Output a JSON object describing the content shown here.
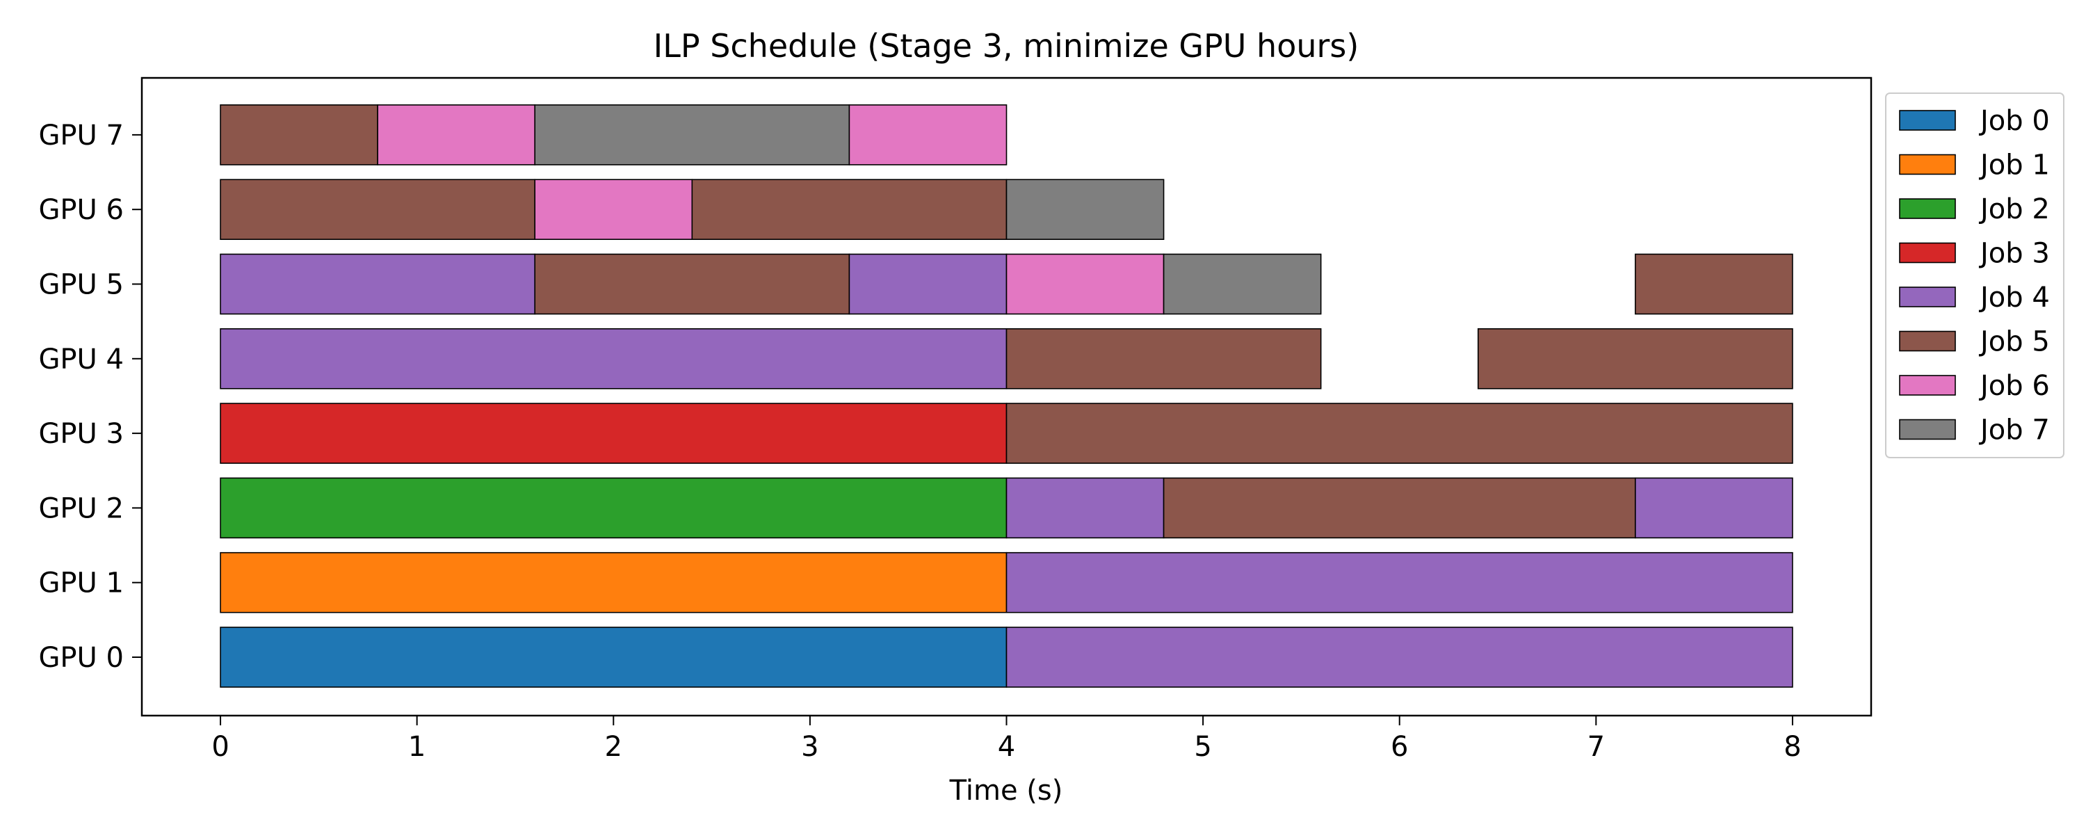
{
  "chart_data": {
    "type": "gantt",
    "title": "ILP Schedule (Stage 3, minimize GPU hours)",
    "xlabel": "Time (s)",
    "ylabel": "",
    "xlim": [
      -0.4,
      8.4
    ],
    "xticks": [
      "0",
      "1",
      "2",
      "3",
      "4",
      "5",
      "6",
      "7",
      "8"
    ],
    "rows": [
      "GPU 0",
      "GPU 1",
      "GPU 2",
      "GPU 3",
      "GPU 4",
      "GPU 5",
      "GPU 6",
      "GPU 7"
    ],
    "legend_position": "outside-top-right",
    "grid": false,
    "series": [
      {
        "name": "Job 0",
        "color": "#1f77b4"
      },
      {
        "name": "Job 1",
        "color": "#ff7f0e"
      },
      {
        "name": "Job 2",
        "color": "#2ca02c"
      },
      {
        "name": "Job 3",
        "color": "#d62728"
      },
      {
        "name": "Job 4",
        "color": "#9467bd"
      },
      {
        "name": "Job 5",
        "color": "#8c564b"
      },
      {
        "name": "Job 6",
        "color": "#e377c2"
      },
      {
        "name": "Job 7",
        "color": "#7f7f7f"
      }
    ],
    "tasks": [
      {
        "gpu": 0,
        "job": 0,
        "start": 0.0,
        "end": 4.0
      },
      {
        "gpu": 0,
        "job": 4,
        "start": 4.0,
        "end": 8.0
      },
      {
        "gpu": 1,
        "job": 1,
        "start": 0.0,
        "end": 4.0
      },
      {
        "gpu": 1,
        "job": 4,
        "start": 4.0,
        "end": 8.0
      },
      {
        "gpu": 2,
        "job": 2,
        "start": 0.0,
        "end": 4.0
      },
      {
        "gpu": 2,
        "job": 4,
        "start": 4.0,
        "end": 4.8
      },
      {
        "gpu": 2,
        "job": 5,
        "start": 4.8,
        "end": 7.2
      },
      {
        "gpu": 2,
        "job": 4,
        "start": 7.2,
        "end": 8.0
      },
      {
        "gpu": 3,
        "job": 3,
        "start": 0.0,
        "end": 4.0
      },
      {
        "gpu": 3,
        "job": 5,
        "start": 4.0,
        "end": 8.0
      },
      {
        "gpu": 4,
        "job": 4,
        "start": 0.0,
        "end": 4.0
      },
      {
        "gpu": 4,
        "job": 5,
        "start": 4.0,
        "end": 5.6
      },
      {
        "gpu": 4,
        "job": 5,
        "start": 6.4,
        "end": 8.0
      },
      {
        "gpu": 5,
        "job": 4,
        "start": 0.0,
        "end": 1.6
      },
      {
        "gpu": 5,
        "job": 5,
        "start": 1.6,
        "end": 3.2
      },
      {
        "gpu": 5,
        "job": 4,
        "start": 3.2,
        "end": 4.0
      },
      {
        "gpu": 5,
        "job": 6,
        "start": 4.0,
        "end": 4.8
      },
      {
        "gpu": 5,
        "job": 7,
        "start": 4.8,
        "end": 5.6
      },
      {
        "gpu": 5,
        "job": 5,
        "start": 7.2,
        "end": 8.0
      },
      {
        "gpu": 6,
        "job": 5,
        "start": 0.0,
        "end": 1.6
      },
      {
        "gpu": 6,
        "job": 6,
        "start": 1.6,
        "end": 2.4
      },
      {
        "gpu": 6,
        "job": 5,
        "start": 2.4,
        "end": 4.0
      },
      {
        "gpu": 6,
        "job": 7,
        "start": 4.0,
        "end": 4.8
      },
      {
        "gpu": 7,
        "job": 5,
        "start": 0.0,
        "end": 0.8
      },
      {
        "gpu": 7,
        "job": 6,
        "start": 0.8,
        "end": 1.6
      },
      {
        "gpu": 7,
        "job": 7,
        "start": 1.6,
        "end": 3.2
      },
      {
        "gpu": 7,
        "job": 6,
        "start": 3.2,
        "end": 4.0
      }
    ]
  }
}
